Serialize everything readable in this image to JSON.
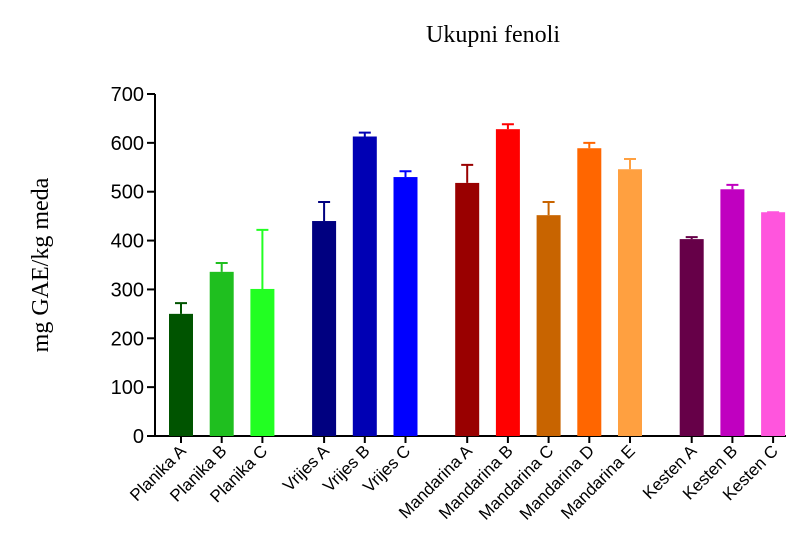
{
  "chart_data": {
    "type": "bar",
    "title": "Ukupni fenoli",
    "ylabel": "mg GAE/kg meda",
    "categories": [
      "Planika A",
      "Planika B",
      "Planika C",
      "Vrijes A",
      "Vrijes B",
      "Vrijes C",
      "Mandarina A",
      "Mandarina B",
      "Mandarina C",
      "Mandarina D",
      "Mandarina E",
      "Kesten A",
      "Kesten B",
      "Kesten C"
    ],
    "values": [
      250,
      336,
      301,
      440,
      613,
      530,
      518,
      628,
      452,
      589,
      546,
      403,
      505,
      458
    ],
    "errors": [
      22,
      18,
      121,
      39,
      8,
      12,
      37,
      10,
      27,
      11,
      21,
      4,
      9,
      0
    ],
    "colors": [
      "#005400",
      "#1fbf1f",
      "#22ff22",
      "#000080",
      "#0000b4",
      "#0000ff",
      "#990000",
      "#ff0000",
      "#c86400",
      "#ff6600",
      "#ffa040",
      "#660048",
      "#c000c0",
      "#ff55dd"
    ],
    "ylim": [
      0,
      700
    ],
    "yticks": [
      0,
      100,
      200,
      300,
      400,
      500,
      600,
      700
    ]
  }
}
